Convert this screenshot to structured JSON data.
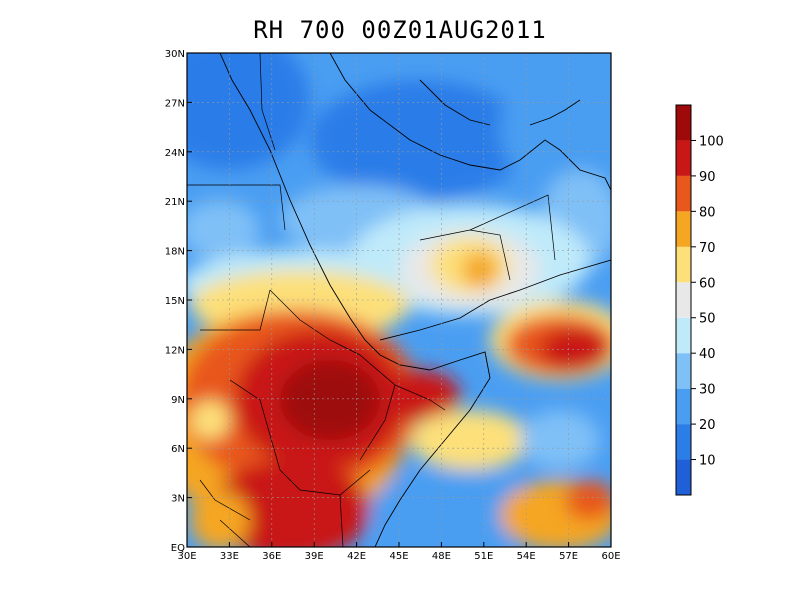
{
  "title": "RH 700 00Z01AUG2011",
  "map": {
    "variable": "Relative humidity",
    "level": "700",
    "lon_range": [
      30,
      60
    ],
    "lat_range": [
      0,
      30
    ],
    "x_ticks": [
      "30E",
      "33E",
      "36E",
      "39E",
      "42E",
      "45E",
      "48E",
      "51E",
      "54E",
      "57E",
      "60E"
    ],
    "y_ticks": [
      "EQ",
      "3N",
      "6N",
      "9N",
      "12N",
      "15N",
      "18N",
      "21N",
      "24N",
      "27N",
      "30N"
    ],
    "grid": true,
    "coastlines": true,
    "country_borders": true
  },
  "colorbar": {
    "orientation": "vertical",
    "placement": "right",
    "labels": [
      "10",
      "20",
      "30",
      "40",
      "50",
      "60",
      "70",
      "80",
      "90",
      "100"
    ],
    "colors": [
      "#1f5fd7",
      "#2b7de8",
      "#4a9ef2",
      "#7fc0f7",
      "#bfeafa",
      "#e8e8e8",
      "#fde07a",
      "#f5a623",
      "#e8571c",
      "#c91616",
      "#9e0a0a"
    ]
  }
}
